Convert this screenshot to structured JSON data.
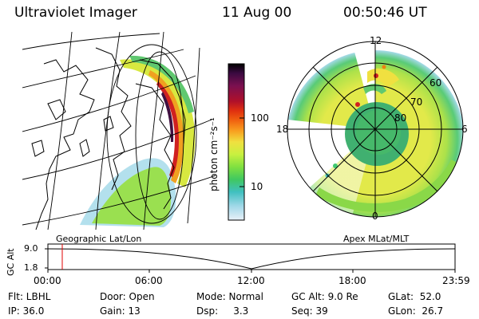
{
  "header": {
    "title": "Ultraviolet Imager",
    "date": "11 Aug 00",
    "time": "00:50:46 UT"
  },
  "colorbar": {
    "unit_label": "photon cm⁻²s⁻¹",
    "ticks": [
      "100",
      "10"
    ],
    "colors": [
      "#000000",
      "#3a0a40",
      "#7a1050",
      "#b0102a",
      "#e03010",
      "#f06010",
      "#f8a020",
      "#f0e040",
      "#c8f040",
      "#80e040",
      "#40c860",
      "#40c0c0",
      "#a0d8e8",
      "#e8f0f8"
    ]
  },
  "polar": {
    "mlt_labels": [
      "12",
      "18",
      "6",
      "0"
    ],
    "lat_labels": [
      "60",
      "70",
      "80"
    ]
  },
  "timeline": {
    "left_label": "Geographic Lat/Lon",
    "right_label": "Apex MLat/MLT",
    "axis_title": "GC Alt",
    "y_ticks": [
      "9.0",
      "1.8"
    ],
    "x_ticks": [
      "00:00",
      "06:00",
      "12:00",
      "18:00",
      "23:59"
    ],
    "current_time_hours": 0.846
  },
  "info": {
    "flt": "Flt: LBHL",
    "door": "Door: Open",
    "mode": "Mode: Normal",
    "gc_alt": "GC Alt: 9.0 Re",
    "glat": "GLat:  52.0",
    "ip": "IP: 36.0",
    "gain": "Gain: 13",
    "dsp": "Dsp:     3.3",
    "seq": "Seq: 39",
    "glon": "GLon:  26.7"
  }
}
